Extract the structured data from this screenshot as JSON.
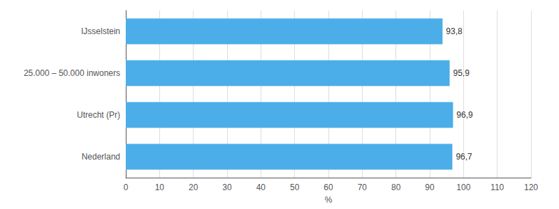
{
  "chart_data": {
    "type": "bar",
    "orientation": "horizontal",
    "categories": [
      "Nederland",
      "Utrecht (Pr)",
      "25.000 – 50.000 inwoners",
      "IJsselstein"
    ],
    "values": [
      96.7,
      96.9,
      95.9,
      93.8
    ],
    "value_labels": [
      "96,7",
      "96,9",
      "95,9",
      "93,8"
    ],
    "data_labels": true,
    "color": "#4baee8",
    "xlabel": "%",
    "xlim": [
      0,
      120
    ],
    "xticks": [
      0,
      10,
      20,
      30,
      40,
      50,
      60,
      70,
      80,
      90,
      100,
      110,
      120
    ],
    "grid": true
  }
}
